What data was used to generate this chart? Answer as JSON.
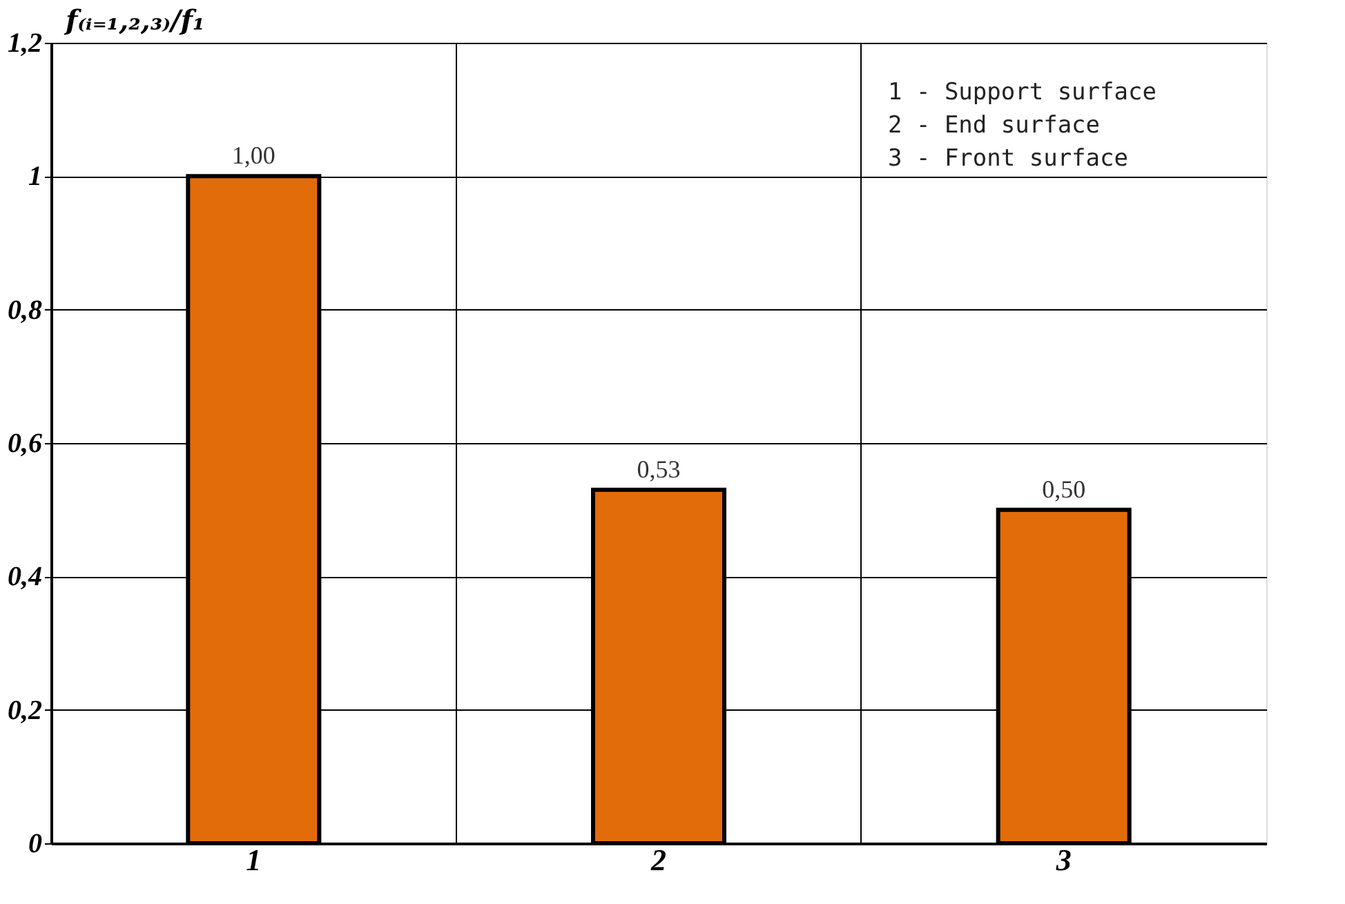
{
  "chart_data": {
    "type": "bar",
    "ylabel": "f₍ᵢ₌₁,₂,₃₎/f₁",
    "categories": [
      "1",
      "2",
      "3"
    ],
    "values": [
      1.0,
      0.53,
      0.5
    ],
    "color": "#e36c0a",
    "value_labels": [
      "1,00",
      "0,53",
      "0,50"
    ],
    "ylim": [
      0,
      1.2
    ],
    "yticks": [
      0,
      {
        "value": 0.2,
        "label": "0,2"
      },
      {
        "value": 0.4,
        "label": "0,4"
      },
      {
        "value": 0.6,
        "label": "0,6"
      },
      {
        "value": 0.8,
        "label": "0,8"
      },
      1,
      {
        "value": 1.2,
        "label": "1,2"
      }
    ],
    "grid": true,
    "annotations": [
      "1 - Support surface",
      "2 - End surface",
      "3 - Front surface"
    ]
  }
}
